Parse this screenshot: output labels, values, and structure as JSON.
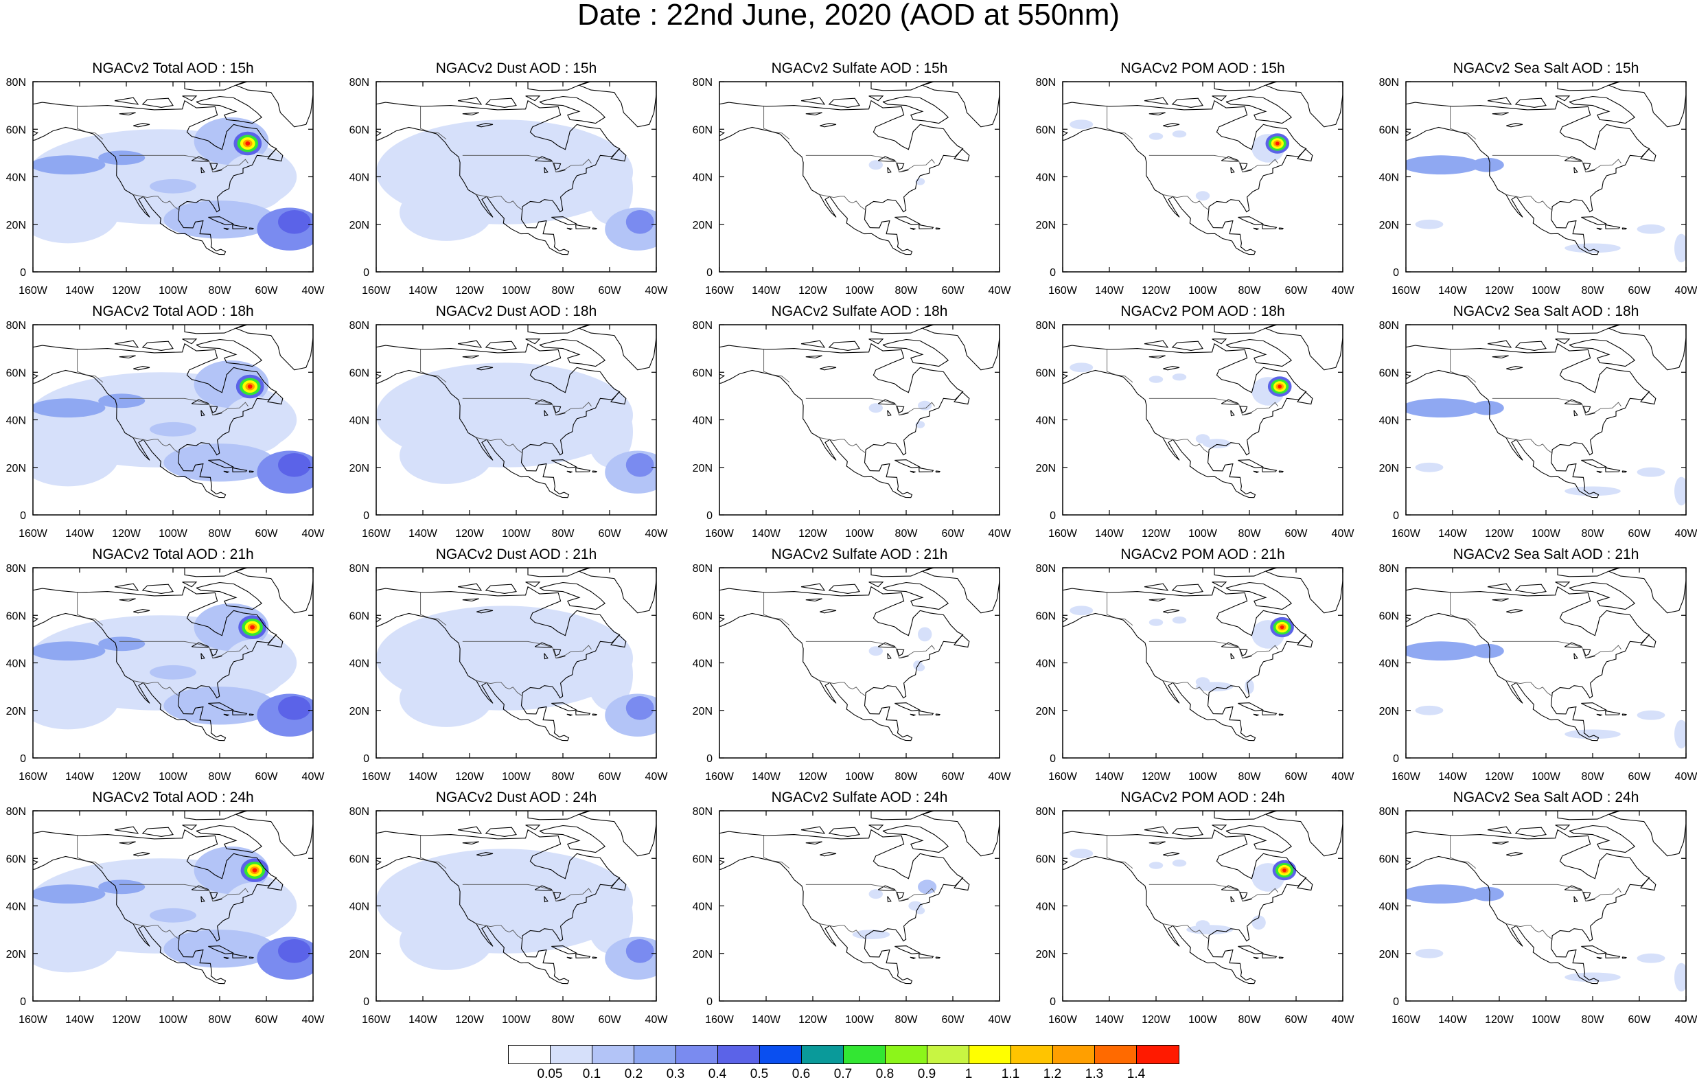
{
  "title": "Date : 22nd June, 2020 (AOD at 550nm)",
  "axes": {
    "lat_ticks": [
      "0",
      "20N",
      "40N",
      "60N",
      "80N"
    ],
    "lon_ticks": [
      "160W",
      "140W",
      "120W",
      "100W",
      "80W",
      "60W",
      "40W"
    ],
    "lat_range": [
      0,
      80
    ],
    "lon_range": [
      -160,
      -40
    ]
  },
  "rows": [
    "15h",
    "18h",
    "21h",
    "24h"
  ],
  "columns": [
    {
      "id": "total",
      "titles": [
        "NGACv2 Total AOD : 15h",
        "NGACv2 Total AOD : 18h",
        "NGACv2 Total AOD : 21h",
        "NGACv2 Total AOD : 24h"
      ]
    },
    {
      "id": "dust",
      "titles": [
        "NGACv2 Dust AOD : 15h",
        "NGACv2 Dust AOD : 18h",
        "NGACv2 Dust AOD : 21h",
        "NGACv2 Dust AOD : 24h"
      ]
    },
    {
      "id": "sulfate",
      "titles": [
        "NGACv2 Sulfate AOD : 15h",
        "NGACv2 Sulfate AOD : 18h",
        "NGACv2 Sulfate AOD : 21h",
        "NGACv2 Sulfate AOD : 24h"
      ]
    },
    {
      "id": "pom",
      "titles": [
        "NGACv2 POM AOD : 15h",
        "NGACv2 POM AOD : 18h",
        "NGACv2 POM AOD : 21h",
        "NGACv2 POM AOD : 24h"
      ]
    },
    {
      "id": "seasalt",
      "titles": [
        "NGACv2 Sea Salt AOD : 15h",
        "NGACv2 Sea Salt AOD : 18h",
        "NGACv2 Sea Salt AOD : 21h",
        "NGACv2 Sea Salt  AOD : 24h"
      ]
    }
  ],
  "colorbar": {
    "colors": [
      "#ffffff",
      "#d6e0fa",
      "#b3c4f7",
      "#8fa8f2",
      "#7a8bf0",
      "#5b63e8",
      "#0a4ff0",
      "#0a9a9a",
      "#33e633",
      "#8cf51a",
      "#c8f542",
      "#ffff00",
      "#ffc400",
      "#ff9f00",
      "#ff6a00",
      "#ff1a00"
    ],
    "labels": [
      "0.05",
      "0.1",
      "0.2",
      "0.3",
      "0.4",
      "0.5",
      "0.6",
      "0.7",
      "0.8",
      "0.9",
      "1",
      "1.1",
      "1.2",
      "1.3",
      "1.4"
    ]
  }
}
